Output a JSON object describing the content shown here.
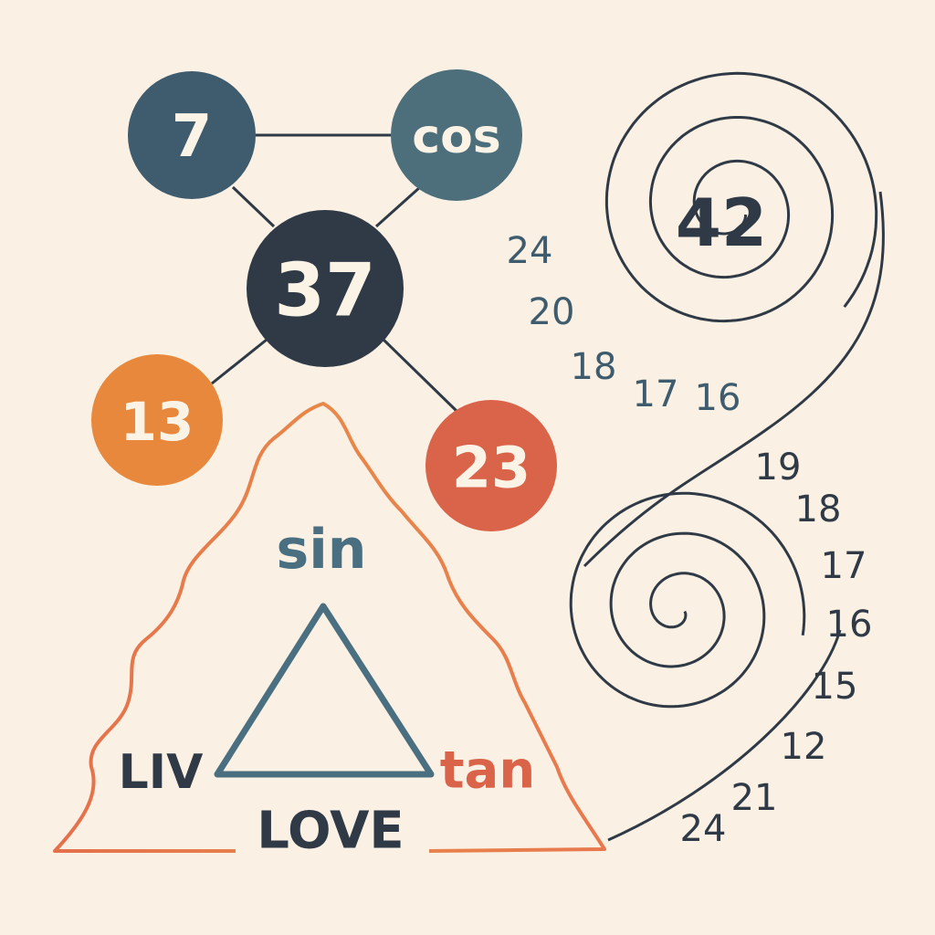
{
  "colors": {
    "background": "#faf0e3",
    "dark_navy": "#2f3a46",
    "slate_blue": "#3e5c6e",
    "teal_blue": "#4d6f7c",
    "orange": "#e8883c",
    "red_orange": "#d9644a",
    "outline_orange": "#e8784e",
    "inner_triangle": "#4a6f80",
    "line": "#2f3a46"
  },
  "nodes": {
    "n7": {
      "label": "7"
    },
    "cos": {
      "label": "cos"
    },
    "n37": {
      "label": "37"
    },
    "n13": {
      "label": "13"
    },
    "n23": {
      "label": "23"
    }
  },
  "triangle": {
    "sin": "sin",
    "liv": "LIV",
    "tan": "tan",
    "love": "LOVE"
  },
  "spiral": {
    "center_label": "42"
  },
  "teal_numbers": [
    "24",
    "20",
    "18",
    "17",
    "16"
  ],
  "dark_numbers": [
    "19",
    "18",
    "17",
    "16",
    "15",
    "12",
    "21",
    "24"
  ]
}
